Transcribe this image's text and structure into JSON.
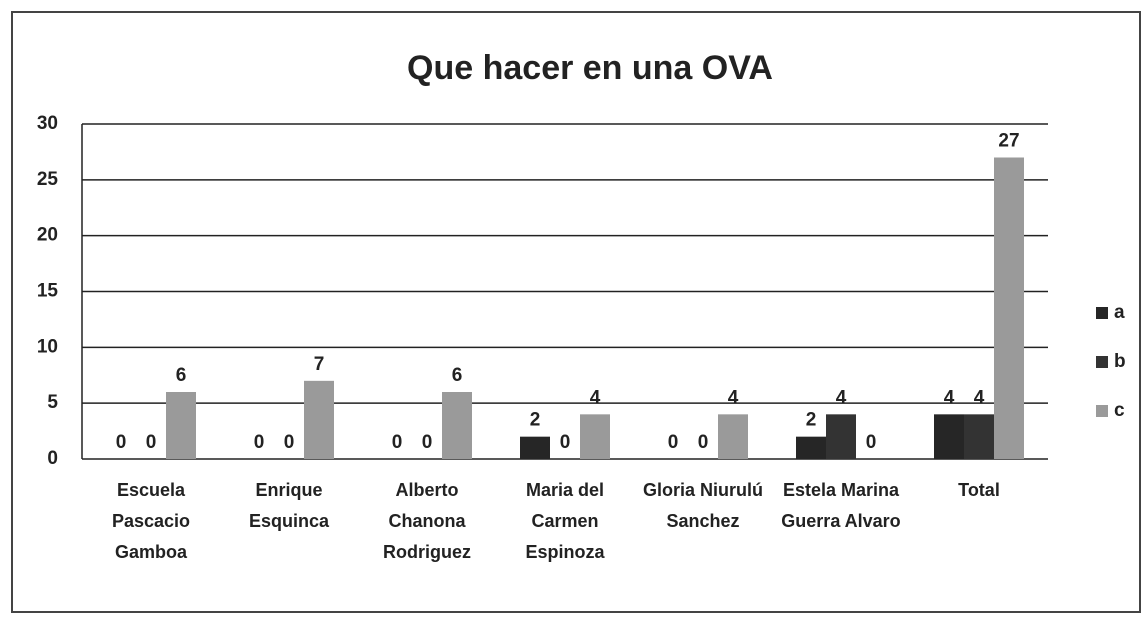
{
  "chart_data": {
    "type": "bar",
    "title": "Que hacer en una OVA",
    "categories": [
      "Escuela Pascacio Gamboa",
      "Enrique Esquinca",
      "Alberto Chanona Rodriguez",
      "Maria del Carmen Espinoza",
      "Gloria Niurulú Sanchez",
      "Estela Marina Guerra Alvaro",
      "Total"
    ],
    "series": [
      {
        "name": "a",
        "color": "#262626",
        "values": [
          0,
          0,
          0,
          2,
          0,
          2,
          4
        ]
      },
      {
        "name": "b",
        "color": "#333333",
        "values": [
          0,
          0,
          0,
          0,
          0,
          4,
          4
        ]
      },
      {
        "name": "c",
        "color": "#9a9a9a",
        "values": [
          6,
          7,
          6,
          4,
          4,
          0,
          27
        ]
      }
    ],
    "ylim": [
      0,
      30
    ],
    "yticks": [
      0,
      5,
      10,
      15,
      20,
      25,
      30
    ],
    "grid": true,
    "legend": "right"
  }
}
